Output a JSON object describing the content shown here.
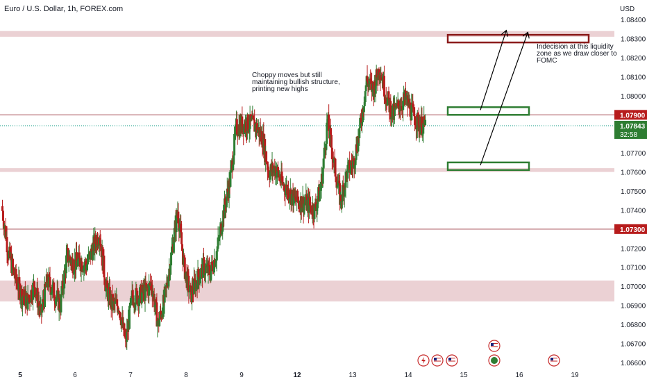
{
  "header": {
    "title": "Euro / U.S. Dollar, 1h, FOREX.com",
    "currency": "USD"
  },
  "annotations": {
    "left_note": [
      "Choppy moves but still",
      "maintaining bullish structure,",
      "printing new highs"
    ],
    "right_note": [
      "Indecision at this liquidity",
      "zone as we draw closer to",
      "FOMC"
    ]
  },
  "price_badges": {
    "upper_level": "1.07900",
    "current_price": "1.07843",
    "countdown": "32:58",
    "lower_level": "1.07300"
  },
  "colors": {
    "bull": "#089981",
    "bear": "#f23645",
    "candle_up": "#2e7d32",
    "candle_down": "#b71c1c",
    "zone_fill": "#e8c9cc",
    "level_line": "#c48a8f",
    "green_box": "#2e7d32",
    "red_box": "#8b1a1a",
    "badge_red": "#b71c1c",
    "badge_green": "#2e7d32"
  },
  "chart_data": {
    "type": "candlestick",
    "symbol": "Euro / U.S. Dollar",
    "timeframe": "1h",
    "ylim": [
      1.0657,
      1.0843
    ],
    "y_ticks": [
      "1.08400",
      "1.08300",
      "1.08200",
      "1.08100",
      "1.08000",
      "1.07700",
      "1.07600",
      "1.07500",
      "1.07400",
      "1.07200",
      "1.07100",
      "1.07000",
      "1.06900",
      "1.06800",
      "1.06700",
      "1.06600"
    ],
    "x_ticks": [
      {
        "label": "5",
        "bold": true
      },
      {
        "label": "6",
        "bold": false
      },
      {
        "label": "7",
        "bold": false
      },
      {
        "label": "8",
        "bold": false
      },
      {
        "label": "9",
        "bold": false
      },
      {
        "label": "12",
        "bold": true
      },
      {
        "label": "13",
        "bold": false
      },
      {
        "label": "14",
        "bold": false
      },
      {
        "label": "15",
        "bold": false
      },
      {
        "label": "16",
        "bold": false
      },
      {
        "label": "19",
        "bold": false
      }
    ],
    "horizontal_levels": [
      1.079,
      1.073
    ],
    "current_price": 1.07843,
    "zones": [
      {
        "from": 1.0831,
        "to": 1.0834
      },
      {
        "from": 1.076,
        "to": 1.0762
      },
      {
        "from": 1.0692,
        "to": 1.0703
      }
    ],
    "boxes": [
      {
        "kind": "target",
        "from": 1.0828,
        "to": 1.0832
      },
      {
        "kind": "support",
        "from": 1.079,
        "to": 1.0794
      },
      {
        "kind": "support",
        "from": 1.0761,
        "to": 1.0765
      }
    ],
    "path": [
      1.0742,
      1.0718,
      1.0705,
      1.0696,
      1.0692,
      1.0701,
      1.0685,
      1.0703,
      1.0697,
      1.069,
      1.0716,
      1.0712,
      1.0713,
      1.0711,
      1.072,
      1.0728,
      1.0699,
      1.069,
      1.069,
      1.067,
      1.0694,
      1.0695,
      1.0697,
      1.0701,
      1.068,
      1.0693,
      1.0716,
      1.074,
      1.071,
      1.0695,
      1.0704,
      1.071,
      1.0707,
      1.0718,
      1.0738,
      1.0755,
      1.0783,
      1.0785,
      1.0785,
      1.0784,
      1.0778,
      1.076,
      1.0762,
      1.0754,
      1.075,
      1.0745,
      1.0744,
      1.0743,
      1.074,
      1.0752,
      1.0787,
      1.0764,
      1.0745,
      1.076,
      1.0765,
      1.0783,
      1.0808,
      1.0803,
      1.0815,
      1.08,
      1.079,
      1.0795,
      1.0798,
      1.0791,
      1.0785,
      1.0784
    ]
  },
  "event_icons": [
    "flash-icon",
    "us-flag-icon",
    "us-flag-icon",
    "us-flag-icon",
    "globe-icon",
    "us-flag-icon"
  ]
}
